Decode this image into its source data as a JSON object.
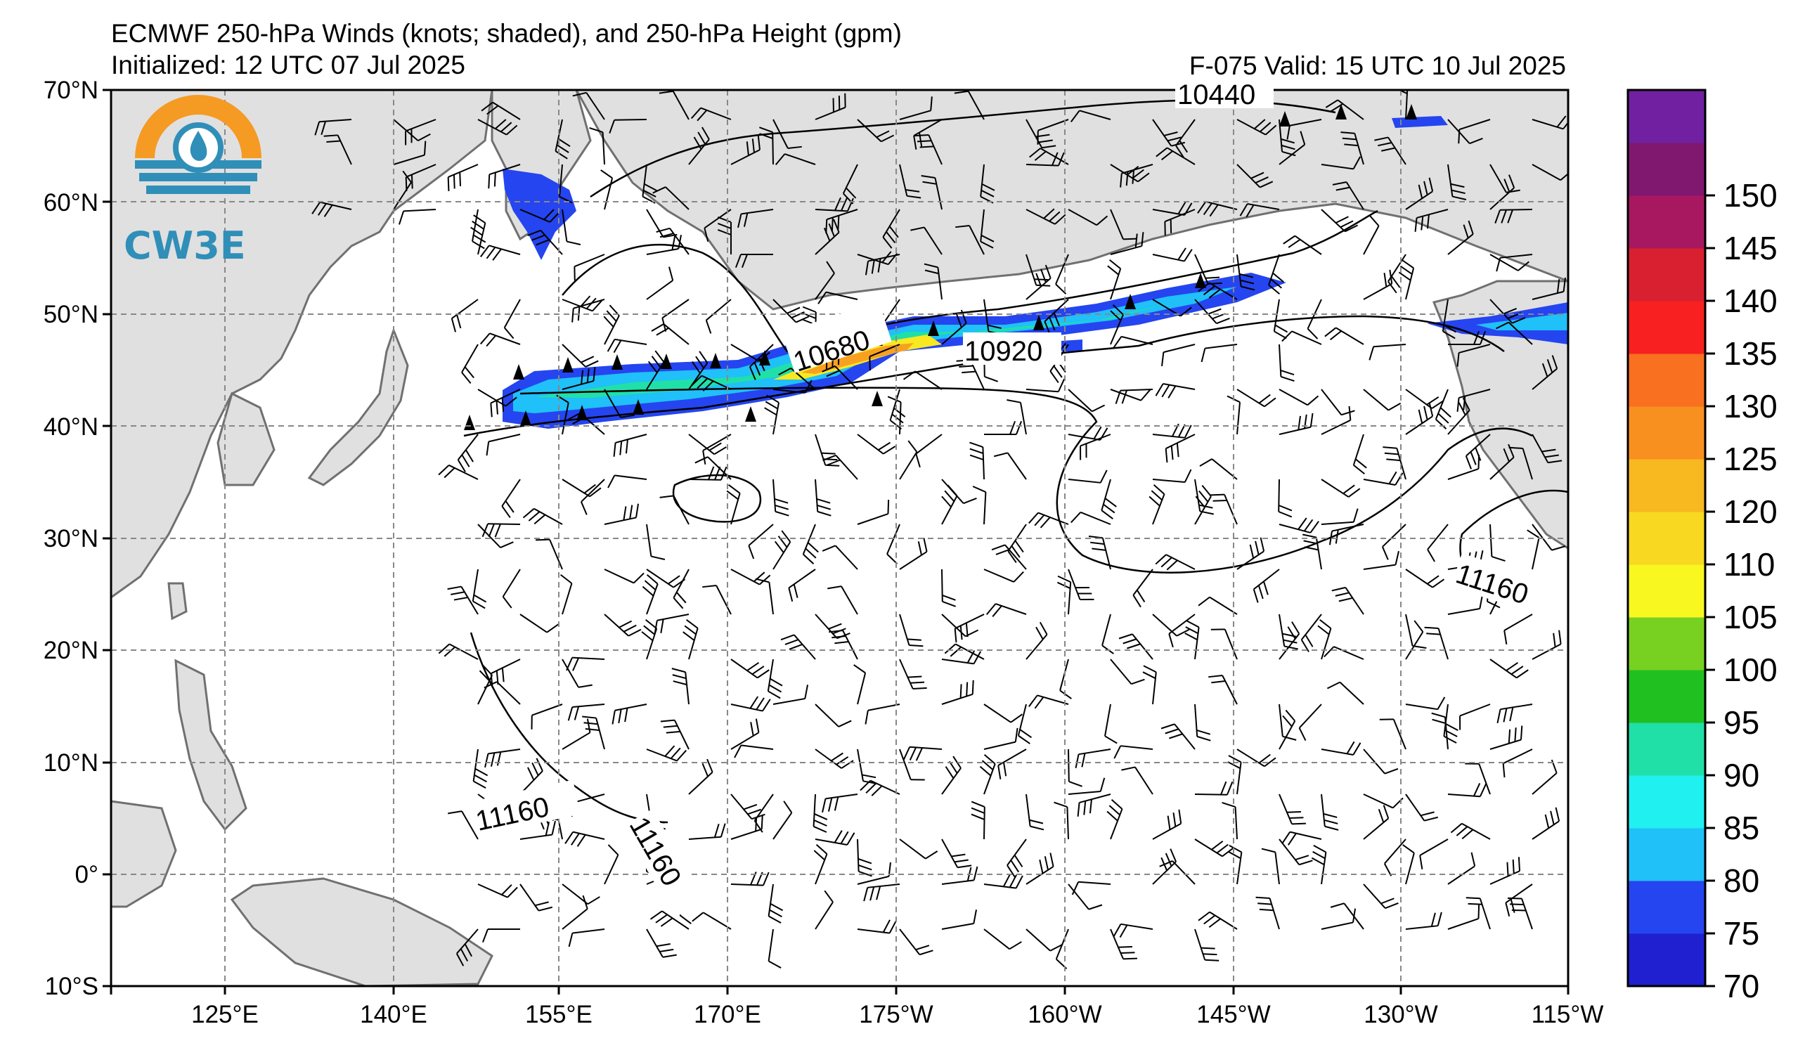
{
  "header": {
    "title": "ECMWF 250-hPa Winds (knots; shaded), and 250-hPa Height (gpm)",
    "initialized": "Initialized: 12 UTC 07 Jul 2025",
    "valid": "F-075  Valid: 15 UTC 10 Jul 2025"
  },
  "logo": {
    "text": "CW3E"
  },
  "map": {
    "lat_ticks": [
      "70°N",
      "60°N",
      "50°N",
      "40°N",
      "30°N",
      "20°N",
      "10°N",
      "0°",
      "10°S"
    ],
    "lon_ticks": [
      "125°E",
      "140°E",
      "155°E",
      "170°E",
      "175°W",
      "160°W",
      "145°W",
      "130°W",
      "115°W"
    ],
    "contour_labels": [
      {
        "id": "c10440",
        "text": "10440"
      },
      {
        "id": "c10680",
        "text": "10680"
      },
      {
        "id": "c10920",
        "text": "10920"
      },
      {
        "id": "c11160a",
        "text": "11160"
      },
      {
        "id": "c11160b",
        "text": "11160"
      },
      {
        "id": "c11160c",
        "text": "11160"
      }
    ]
  },
  "colorbar": {
    "tick_labels": [
      "70",
      "75",
      "80",
      "85",
      "90",
      "95",
      "100",
      "105",
      "110",
      "120",
      "125",
      "130",
      "135",
      "140",
      "145",
      "150"
    ],
    "colors": [
      "#2020d0",
      "#2545f0",
      "#20c0f8",
      "#20f0f0",
      "#20e0a8",
      "#20c020",
      "#78d020",
      "#f8f820",
      "#f8d820",
      "#f8b820",
      "#f89020",
      "#f87020",
      "#f82020",
      "#d82030",
      "#a81860",
      "#801870",
      "#7020a0"
    ]
  }
}
